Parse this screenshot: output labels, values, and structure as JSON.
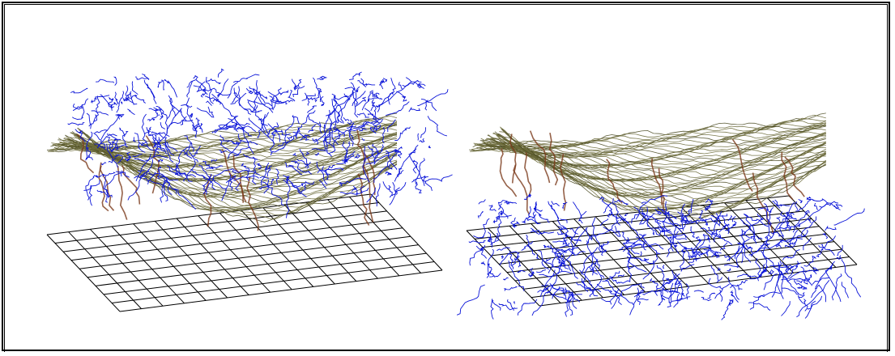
{
  "figure": {
    "panels": [
      {
        "id": "left",
        "stream_network_layer": "lifted-above-terrain"
      },
      {
        "id": "right",
        "stream_network_layer": "draped-on-base-grid"
      }
    ],
    "colors": {
      "background": "#ffffff",
      "frame": "#000000",
      "grid": "#000000",
      "contours": "#6b6a3a",
      "contours_dark": "#4a4a22",
      "ridges": "#7a3a1a",
      "streams": "#0a14d8"
    }
  }
}
